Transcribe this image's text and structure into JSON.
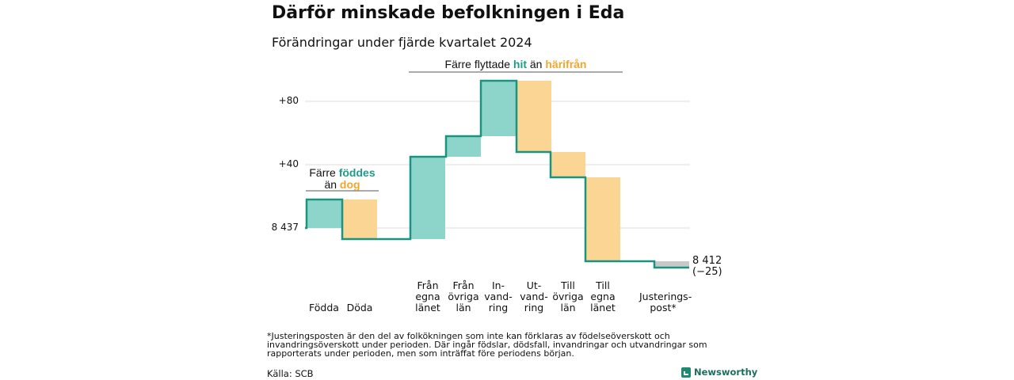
{
  "title": "Därför minskade befolkningen i Eda",
  "subtitle": "Förändringar under fjärde kvartalet 2024",
  "annotations": {
    "births": {
      "prefix": "Färre",
      "teal": "föddes",
      "mid": "än",
      "orange": "dog"
    },
    "migration": {
      "prefix": "Färre flyttade",
      "teal": "hit",
      "mid": "än",
      "orange": "härifrån"
    }
  },
  "chart_data": {
    "type": "waterfall",
    "title": "Därför minskade befolkningen i Eda",
    "subtitle": "Förändringar under fjärde kvartalet 2024",
    "start_label": "8 437",
    "start_value": 8437,
    "end_label": "8 412",
    "end_change_label": "(−25)",
    "end_value": 8412,
    "y_ticks": [
      {
        "offset": 0,
        "label": "8 437"
      },
      {
        "offset": 40,
        "label": "+40"
      },
      {
        "offset": 80,
        "label": "+80"
      }
    ],
    "ylim_offset": [
      -26,
      94
    ],
    "steps": [
      {
        "label": "Födda",
        "value": 18,
        "kind": "in"
      },
      {
        "label": "Döda",
        "value": -25,
        "kind": "out"
      },
      {
        "label": "Från\negna\nlänet",
        "value": 52,
        "kind": "in"
      },
      {
        "label": "Från\növriga\nlän",
        "value": 13,
        "kind": "in"
      },
      {
        "label": "In-\nvand-\nring",
        "value": 35,
        "kind": "in"
      },
      {
        "label": "Ut-\nvand-\nring",
        "value": -45,
        "kind": "out"
      },
      {
        "label": "Till\növriga\nlän",
        "value": -16,
        "kind": "out"
      },
      {
        "label": "Till\negna\nlänet",
        "value": -53,
        "kind": "out"
      },
      {
        "label": "Justerings-\npost*",
        "value": -4,
        "kind": "adj"
      }
    ],
    "colors": {
      "in": "#8dd5cb",
      "out": "#fad594",
      "adj": "#c8c8c8",
      "line": "#1a9481",
      "grid": "#dddddd"
    }
  },
  "footnote": "*Justeringsposten är den del av folkökningen som inte kan förklaras av födelseöverskott och invandringsöverskott under perioden. Där ingår födslar, dödsfall, invandringar och utvandringar som rapporterats under perioden, men som inträffat före periodens början.",
  "source": "Källa: SCB",
  "brand": "Newsworthy"
}
